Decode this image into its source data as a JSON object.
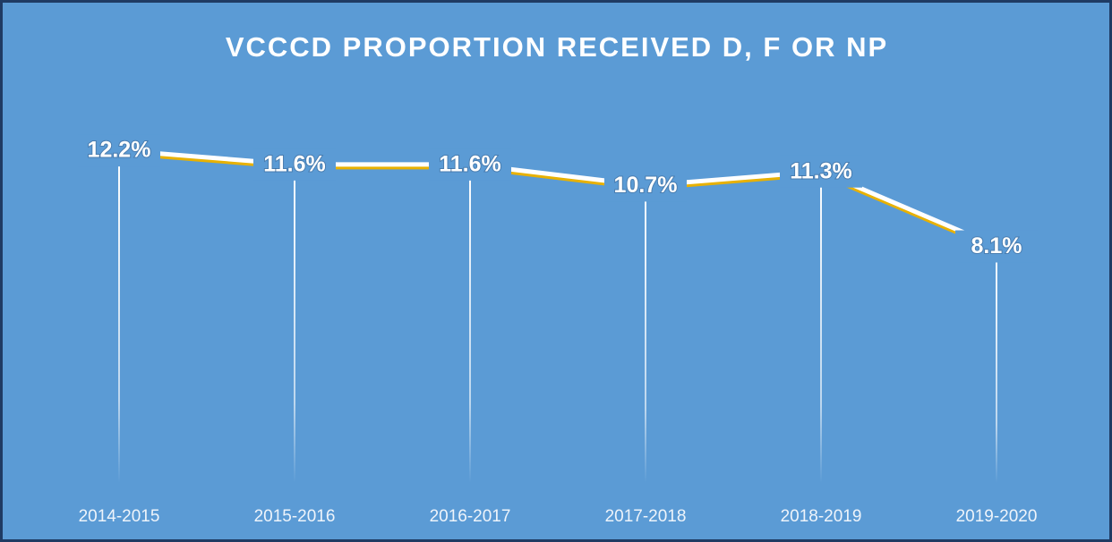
{
  "chart_data": {
    "type": "line",
    "title": "VCCCD PROPORTION RECEIVED D, F OR NP",
    "categories": [
      "2014-2015",
      "2015-2016",
      "2016-2017",
      "2017-2018",
      "2018-2019",
      "2019-2020"
    ],
    "values": [
      12.2,
      11.6,
      11.6,
      10.7,
      11.3,
      8.1
    ],
    "value_labels": [
      "12.2%",
      "11.6%",
      "11.6%",
      "10.7%",
      "11.3%",
      "8.1%"
    ],
    "color": "#ffffff",
    "shadow_color": "#e8b100",
    "ylim": [
      -2,
      14
    ]
  }
}
